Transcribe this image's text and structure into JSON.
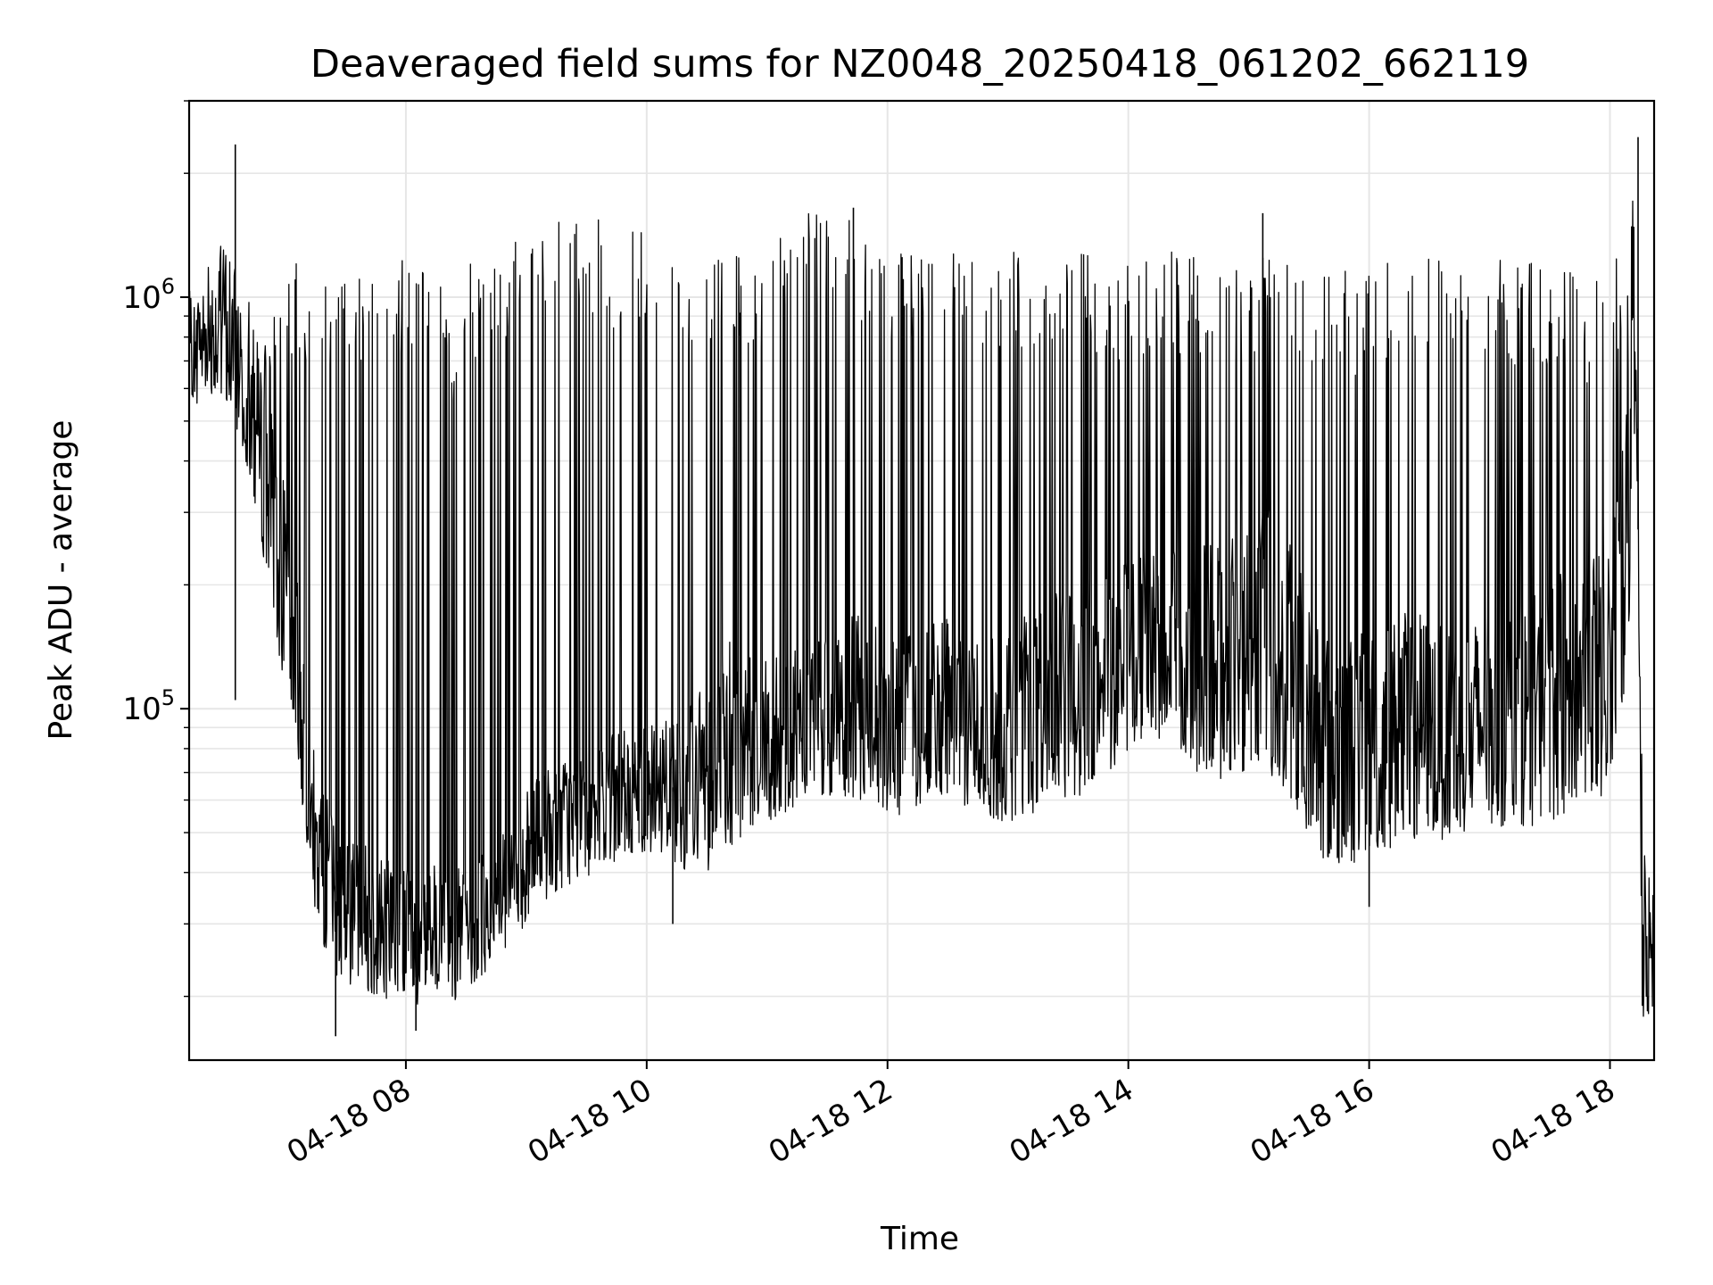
{
  "chart_data": {
    "type": "line",
    "title": "Deaveraged field sums for NZ0048_20250418_061202_662119",
    "xlabel": "Time",
    "ylabel": "Peak ADU - average",
    "yscale": "log",
    "ylim": [
      14000,
      3000000
    ],
    "xlim": [
      "2025-04-18 06:12",
      "2025-04-18 18:22"
    ],
    "x_ticks": [
      "04-18 08",
      "04-18 10",
      "04-18 12",
      "04-18 14",
      "04-18 16",
      "04-18 18"
    ],
    "y_ticks": [
      {
        "base": "10",
        "exp": "5"
      },
      {
        "base": "10",
        "exp": "6"
      }
    ],
    "grid": true,
    "legend": "none",
    "line_color": "#000000",
    "series": [
      {
        "x": [
          "2025-04-18 06:12",
          "2025-04-18 06:20",
          "2025-04-18 06:30",
          "2025-04-18 06:40",
          "2025-04-18 06:48",
          "2025-04-18 06:55",
          "2025-04-18 07:05",
          "2025-04-18 07:15",
          "2025-04-18 07:25",
          "2025-04-18 07:35",
          "2025-04-18 07:45",
          "2025-04-18 07:55",
          "2025-04-18 08:05",
          "2025-04-18 08:15",
          "2025-04-18 08:25",
          "2025-04-18 08:35",
          "2025-04-18 08:45",
          "2025-04-18 08:55",
          "2025-04-18 09:05",
          "2025-04-18 09:15",
          "2025-04-18 09:25",
          "2025-04-18 09:35",
          "2025-04-18 09:45",
          "2025-04-18 09:55",
          "2025-04-18 10:05",
          "2025-04-18 10:15",
          "2025-04-18 10:25",
          "2025-04-18 10:40",
          "2025-04-18 10:55",
          "2025-04-18 11:10",
          "2025-04-18 11:25",
          "2025-04-18 11:40",
          "2025-04-18 11:55",
          "2025-04-18 12:10",
          "2025-04-18 12:25",
          "2025-04-18 12:40",
          "2025-04-18 12:55",
          "2025-04-18 13:10",
          "2025-04-18 13:25",
          "2025-04-18 13:40",
          "2025-04-18 13:55",
          "2025-04-18 14:10",
          "2025-04-18 14:25",
          "2025-04-18 14:40",
          "2025-04-18 14:55",
          "2025-04-18 15:10",
          "2025-04-18 15:25",
          "2025-04-18 15:40",
          "2025-04-18 15:55",
          "2025-04-18 16:10",
          "2025-04-18 16:25",
          "2025-04-18 16:40",
          "2025-04-18 16:55",
          "2025-04-18 17:10",
          "2025-04-18 17:25",
          "2025-04-18 17:40",
          "2025-04-18 17:55",
          "2025-04-18 18:05",
          "2025-04-18 18:10",
          "2025-04-18 18:13",
          "2025-04-18 18:16",
          "2025-04-18 18:20"
        ],
        "y": [
          650000,
          700000,
          900000,
          600000,
          420000,
          300000,
          150000,
          45000,
          34000,
          31000,
          29000,
          28000,
          27000,
          26000,
          25500,
          27000,
          30000,
          36000,
          42000,
          48000,
          50000,
          52000,
          55000,
          58000,
          62000,
          65000,
          68000,
          100000,
          90000,
          85000,
          95000,
          110000,
          100000,
          95000,
          105000,
          100000,
          95000,
          110000,
          120000,
          130000,
          140000,
          160000,
          150000,
          170000,
          180000,
          200000,
          150000,
          100000,
          95000,
          105000,
          110000,
          100000,
          105000,
          110000,
          120000,
          140000,
          170000,
          220000,
          500000,
          900000,
          25000,
          26000
        ],
        "hi": [
          750000,
          1300000,
          1100000,
          1000000,
          900000,
          1200000,
          1300000,
          1200000,
          1200000,
          1250000,
          1200000,
          1300000,
          1200000,
          1100000,
          1000000,
          1300000,
          1300000,
          1400000,
          1500000,
          1550000,
          1600000,
          1550000,
          1500000,
          1500000,
          1450000,
          1400000,
          1400000,
          1350000,
          1300000,
          1550000,
          1650000,
          1550000,
          1400000,
          1350000,
          1250000,
          1300000,
          1300000,
          1300000,
          1400000,
          1300000,
          1200000,
          1350000,
          1300000,
          1250000,
          1200000,
          1300000,
          1250000,
          1200000,
          1150000,
          1250000,
          1300000,
          1200000,
          1200000,
          1250000,
          1200000,
          1150000,
          1100000,
          1300000,
          1400000,
          2400000,
          80000,
          30000
        ],
        "lo": [
          550000,
          600000,
          550000,
          400000,
          250000,
          150000,
          80000,
          30000,
          22000,
          21000,
          20000,
          19500,
          19000,
          19000,
          19500,
          21000,
          24000,
          28000,
          32000,
          36000,
          38000,
          40000,
          42000,
          44000,
          45000,
          42000,
          38000,
          45000,
          50000,
          55000,
          60000,
          60000,
          55000,
          55000,
          60000,
          58000,
          52000,
          55000,
          60000,
          60000,
          75000,
          85000,
          80000,
          65000,
          70000,
          70000,
          55000,
          40000,
          42000,
          45000,
          48000,
          48000,
          50000,
          52000,
          52000,
          55000,
          60000,
          80000,
          150000,
          600000,
          17000,
          18000
        ],
        "spikes": [
          {
            "x": "2025-04-18 06:35",
            "y": 2350000
          },
          {
            "x": "2025-04-18 06:35",
            "y": 105000
          },
          {
            "x": "2025-04-18 07:25",
            "y": 16000
          },
          {
            "x": "2025-04-18 08:05",
            "y": 16500
          },
          {
            "x": "2025-04-18 10:13",
            "y": 30000
          },
          {
            "x": "2025-04-18 11:43",
            "y": 1650000
          },
          {
            "x": "2025-04-18 15:07",
            "y": 1600000
          },
          {
            "x": "2025-04-18 16:00",
            "y": 33000
          },
          {
            "x": "2025-04-18 18:14",
            "y": 2450000
          }
        ]
      }
    ]
  }
}
